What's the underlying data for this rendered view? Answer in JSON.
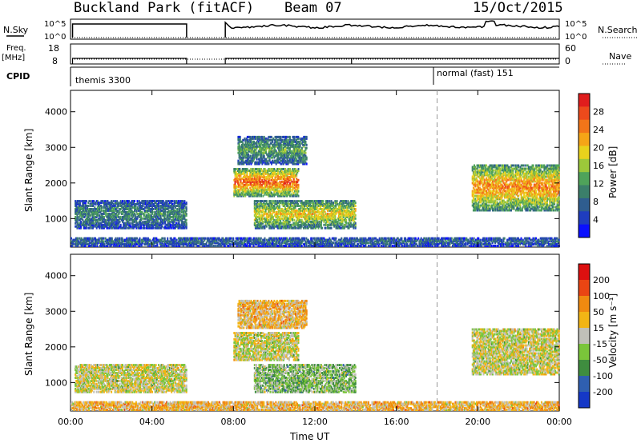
{
  "header": {
    "station": "Buckland Park (fitACF)",
    "beam": "Beam 07",
    "date": "15/Oct/2015"
  },
  "strip_labels": {
    "nsky": "N.Sky",
    "nsky_hi": "10^5",
    "nsky_lo": "10^0",
    "nsearch": "N.Search",
    "nsearch_hi": "10^5",
    "nsearch_lo": "10^0",
    "freq": "Freq.",
    "freq_unit": "[MHz]",
    "freq_hi": "18",
    "freq_lo": "8",
    "nave": "Nave",
    "nave_hi": "60",
    "nave_lo": "0",
    "cpid": "CPID",
    "cpid_1": "themis 3300",
    "cpid_2": "normal (fast) 151"
  },
  "chart_data": [
    {
      "type": "heatmap",
      "panel": "power",
      "ylabel": "Slant Range [km]",
      "yticks": [
        "1000",
        "2000",
        "3000",
        "4000"
      ],
      "ylim": [
        200,
        4600
      ],
      "xlim": [
        0,
        24
      ],
      "colorbar_label": "Power [dB]",
      "colorbar_ticks": [
        "4",
        "8",
        "12",
        "16",
        "20",
        "24",
        "28"
      ],
      "colorbar_range": [
        0,
        30
      ],
      "colors": [
        "#0a10ff",
        "#1f3dbf",
        "#2f5d8f",
        "#3b7f6a",
        "#4fa35a",
        "#9cc83a",
        "#e8d21c",
        "#f5a517",
        "#f27519",
        "#ec4a1c",
        "#e01d1d"
      ],
      "mode_change_hour": 18,
      "regions": [
        {
          "t0": 0.2,
          "t1": 5.7,
          "r0": 700,
          "r1": 1500,
          "level": 8
        },
        {
          "t0": 8.0,
          "t1": 11.2,
          "r0": 1600,
          "r1": 2400,
          "level": 22
        },
        {
          "t0": 8.2,
          "t1": 11.6,
          "r0": 2500,
          "r1": 3300,
          "level": 10
        },
        {
          "t0": 9.0,
          "t1": 14.0,
          "r0": 700,
          "r1": 1500,
          "level": 16
        },
        {
          "t0": 19.7,
          "t1": 24.0,
          "r0": 1200,
          "r1": 2500,
          "level": 20
        },
        {
          "t0": 0.0,
          "t1": 24.0,
          "r0": 200,
          "r1": 450,
          "level": 6
        }
      ]
    },
    {
      "type": "heatmap",
      "panel": "velocity",
      "xlabel": "Time UT",
      "ylabel": "Slant Range [km]",
      "xticks": [
        "00:00",
        "04:00",
        "08:00",
        "12:00",
        "16:00",
        "20:00",
        "00:00"
      ],
      "yticks": [
        "1000",
        "2000",
        "3000",
        "4000"
      ],
      "ylim": [
        200,
        4600
      ],
      "xlim": [
        0,
        24
      ],
      "colorbar_label": "Velocity [m s⁻¹]",
      "colorbar_ticks": [
        "200",
        "100",
        "50",
        "15",
        "-15",
        "-50",
        "-100",
        "-200"
      ],
      "colors": [
        "#1538c7",
        "#2f5fb0",
        "#3f8d3f",
        "#7ac53a",
        "#c0c0b8",
        "#f2b515",
        "#f08a10",
        "#ea4513",
        "#dd1010"
      ],
      "regions": [
        {
          "t0": 0.2,
          "t1": 5.7,
          "r0": 700,
          "r1": 1500,
          "level": 4
        },
        {
          "t0": 8.0,
          "t1": 11.2,
          "r0": 1600,
          "r1": 2400,
          "level": 4
        },
        {
          "t0": 8.2,
          "t1": 11.6,
          "r0": 2500,
          "r1": 3300,
          "level": 5
        },
        {
          "t0": 9.0,
          "t1": 14.0,
          "r0": 700,
          "r1": 1500,
          "level": 3
        },
        {
          "t0": 19.7,
          "t1": 24.0,
          "r0": 1200,
          "r1": 2500,
          "level": 4
        },
        {
          "t0": 0.0,
          "t1": 24.0,
          "r0": 200,
          "r1": 450,
          "level": 5
        }
      ]
    }
  ]
}
